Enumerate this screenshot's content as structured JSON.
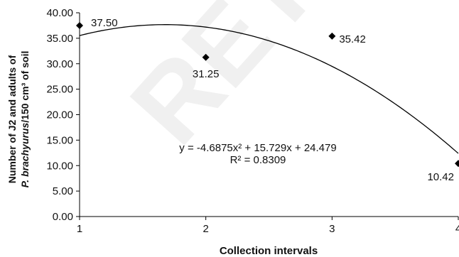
{
  "watermark": "RETRACTED ARTICLE",
  "chart_data": {
    "type": "scatter",
    "xlabel": "Collection intervals",
    "ylabel_line1": "Number of J2 and adults of",
    "ylabel_line2_italic": "P. brachyurus",
    "ylabel_line2_rest": "/150 cm³ of soil",
    "xlim": [
      1,
      4
    ],
    "ylim": [
      0,
      40
    ],
    "x_ticks": [
      "1",
      "2",
      "3",
      "4"
    ],
    "y_ticks": [
      "0.00",
      "5.00",
      "10.00",
      "15.00",
      "20.00",
      "25.00",
      "30.00",
      "35.00",
      "40.00"
    ],
    "points": [
      {
        "x": 1,
        "y": 37.5,
        "label": "37.50"
      },
      {
        "x": 2,
        "y": 31.25,
        "label": "31.25"
      },
      {
        "x": 3,
        "y": 35.42,
        "label": "35.42"
      },
      {
        "x": 4,
        "y": 10.42,
        "label": "10.42"
      }
    ],
    "trendline": {
      "type": "polynomial",
      "coefficients": [
        -4.6875,
        15.729,
        24.479
      ]
    },
    "equation": "y = -4.6875x² + 15.729x + 24.479",
    "r_squared": "R² = 0.8309",
    "grid": false,
    "legend": "none"
  }
}
